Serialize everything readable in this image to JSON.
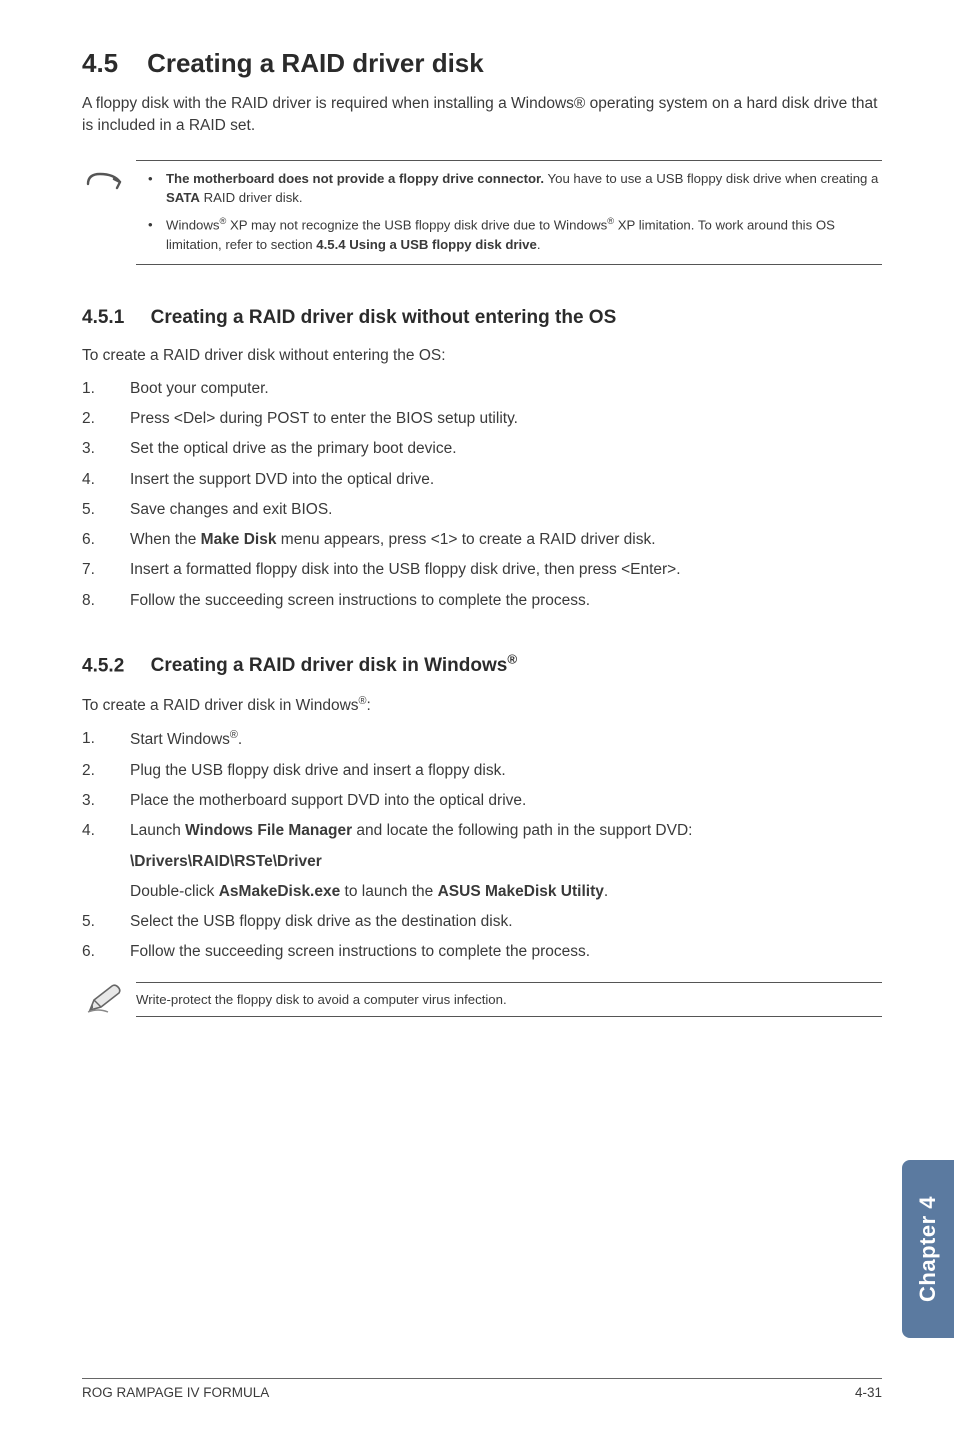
{
  "heading": {
    "number": "4.5",
    "title": "Creating a RAID driver disk"
  },
  "intro": "A floppy disk with the RAID driver is required when installing a Windows® operating system on a hard disk drive that is included in a RAID set.",
  "notes": [
    {
      "html": "<b>The motherboard does not provide a floppy drive connector.</b> You have to use a USB floppy disk drive when creating a <b>SATA</b> RAID driver disk."
    },
    {
      "html": "Windows<span class='sup'>®</span> XP may not recognize the USB floppy disk drive due to Windows<span class='sup'>®</span> XP limitation. To work around this OS limitation, refer to section <b>4.5.4 Using a USB floppy disk drive</b>."
    }
  ],
  "section1": {
    "number": "4.5.1",
    "title": "Creating a RAID driver disk without entering the OS",
    "lead": "To create a RAID driver disk without entering the OS:",
    "steps": [
      {
        "html": "Boot your computer."
      },
      {
        "html": "Press &lt;Del&gt; during POST to enter the BIOS setup utility."
      },
      {
        "html": "Set the optical drive as the primary boot device."
      },
      {
        "html": "Insert the support DVD into the optical drive."
      },
      {
        "html": "Save changes and exit BIOS."
      },
      {
        "html": "When the <b>Make Disk</b> menu appears, press &lt;1&gt; to create a RAID driver disk."
      },
      {
        "html": "Insert a formatted floppy disk into the USB floppy disk drive, then press &lt;Enter&gt;."
      },
      {
        "html": "Follow the succeeding screen instructions to complete the process."
      }
    ]
  },
  "section2": {
    "number": "4.5.2",
    "title_html": "Creating a RAID driver disk in Windows<span class='sup'>®</span>",
    "lead_html": "To create a RAID driver disk in Windows<span class='sup'>®</span>:",
    "steps": [
      {
        "html": "Start Windows<span class='sup'>®</span>."
      },
      {
        "html": "Plug the USB floppy disk drive and insert a floppy disk."
      },
      {
        "html": "Place the motherboard support DVD into the optical drive."
      },
      {
        "html": "Launch <b>Windows File Manager</b> and locate the following path in the support DVD:<span class='sub'><b>\\Drivers\\RAID\\RSTe\\Driver</b></span><span class='sub'>Double-click <b>AsMakeDisk.exe</b> to launch the <b>ASUS MakeDisk Utility</b>.</span>"
      },
      {
        "html": "Select the USB floppy disk drive as the destination disk."
      },
      {
        "html": "Follow the succeeding screen instructions to complete the process."
      }
    ]
  },
  "tip": "Write-protect the floppy disk to avoid a computer virus infection.",
  "sidetab": "Chapter 4",
  "footer": {
    "left": "ROG RAMPAGE IV FORMULA",
    "right": "4-31"
  },
  "colors": {
    "sidetab_bg": "#5b7aa0",
    "text": "#3a3a3a",
    "rule": "#555555"
  }
}
